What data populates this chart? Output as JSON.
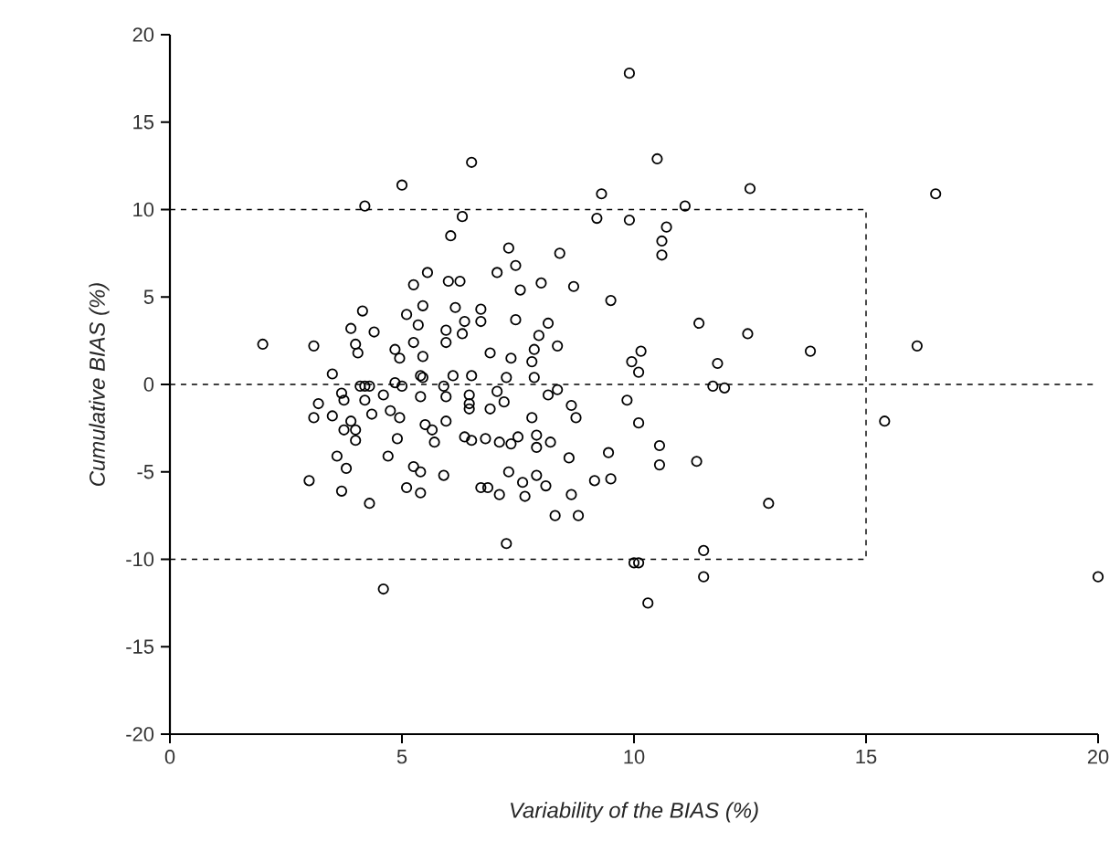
{
  "chart_data": {
    "type": "scatter",
    "xlabel": "Variability of the BIAS (%)",
    "ylabel": "Cumulative BIAS (%)",
    "xlim": [
      0,
      20
    ],
    "ylim": [
      -20,
      20
    ],
    "xticks": [
      0,
      5,
      10,
      15,
      20
    ],
    "yticks": [
      -20,
      -15,
      -10,
      -5,
      0,
      5,
      10,
      15,
      20
    ],
    "ref_lines": [
      {
        "axis": "y",
        "value": 0,
        "line_style": "dashed",
        "color": "#000000"
      }
    ],
    "series": [
      {
        "color": "#000000",
        "marker": "circle",
        "x": [
          2.0,
          3.1,
          4.2,
          5.0,
          6.5,
          6.3,
          6.05,
          5.55,
          5.25,
          6.0,
          6.25,
          4.15,
          5.1,
          5.45,
          6.15,
          6.7,
          6.7,
          5.35,
          6.35,
          3.9,
          4.4,
          5.95,
          5.95,
          6.3,
          5.25,
          4.0,
          4.05,
          4.85,
          4.95,
          5.45,
          3.5,
          5.4,
          5.45,
          6.1,
          6.5,
          3.7,
          3.75,
          4.1,
          4.2,
          4.3,
          4.6,
          4.2,
          4.85,
          5.0,
          5.9,
          5.95,
          6.45,
          6.45,
          6.45,
          3.2,
          3.1,
          3.5,
          3.9,
          3.75,
          4.0,
          4.0,
          4.35,
          4.75,
          4.95,
          5.4,
          5.5,
          5.65,
          5.7,
          5.95,
          6.35,
          6.5,
          4.9,
          3.6,
          3.8,
          4.7,
          5.25,
          5.4,
          5.9,
          3.0,
          3.7,
          5.1,
          5.4,
          4.3,
          6.7,
          4.6,
          9.9,
          10.5,
          12.5,
          9.3,
          11.1,
          9.2,
          9.9,
          10.7,
          10.6,
          10.6,
          7.3,
          7.45,
          7.05,
          8.4,
          7.55,
          8.0,
          8.7,
          9.5,
          7.45,
          8.15,
          7.95,
          8.35,
          7.85,
          6.9,
          7.35,
          7.8,
          11.4,
          12.45,
          10.15,
          9.95,
          10.1,
          11.8,
          7.25,
          7.85,
          11.7,
          11.95,
          7.05,
          6.9,
          7.2,
          8.15,
          8.35,
          7.8,
          8.65,
          8.75,
          9.85,
          10.1,
          6.8,
          7.1,
          7.35,
          7.5,
          7.9,
          7.9,
          8.2,
          8.6,
          9.45,
          10.55,
          10.55,
          11.35,
          7.3,
          7.6,
          7.9,
          8.1,
          6.85,
          7.1,
          7.65,
          8.65,
          9.15,
          9.5,
          8.3,
          8.8,
          12.9,
          7.25,
          10.0,
          10.1,
          11.5,
          11.5,
          10.3,
          16.5,
          13.8,
          16.1,
          15.4,
          20.0
        ],
        "values": [
          2.3,
          2.2,
          10.2,
          11.4,
          12.7,
          9.6,
          8.5,
          6.4,
          5.7,
          5.9,
          5.9,
          4.2,
          4.0,
          4.5,
          4.4,
          4.3,
          3.6,
          3.4,
          3.6,
          3.2,
          3.0,
          3.1,
          2.4,
          2.9,
          2.4,
          2.3,
          1.8,
          2.0,
          1.5,
          1.6,
          0.6,
          0.5,
          0.4,
          0.5,
          0.5,
          -0.5,
          -0.9,
          -0.1,
          -0.1,
          -0.1,
          -0.6,
          -0.9,
          0.1,
          -0.1,
          -0.1,
          -0.7,
          -0.6,
          -1.1,
          -1.4,
          -1.1,
          -1.9,
          -1.8,
          -2.1,
          -2.6,
          -2.6,
          -3.2,
          -1.7,
          -1.5,
          -1.9,
          -0.7,
          -2.3,
          -2.6,
          -3.3,
          -2.1,
          -3.0,
          -3.2,
          -3.1,
          -4.1,
          -4.8,
          -4.1,
          -4.7,
          -5.0,
          -5.2,
          -5.5,
          -6.1,
          -5.9,
          -6.2,
          -6.8,
          -5.9,
          -11.7,
          17.8,
          12.9,
          11.2,
          10.9,
          10.2,
          9.5,
          9.4,
          9.0,
          8.2,
          7.4,
          7.8,
          6.8,
          6.4,
          7.5,
          5.4,
          5.8,
          5.6,
          4.8,
          3.7,
          3.5,
          2.8,
          2.2,
          2.0,
          1.8,
          1.5,
          1.3,
          3.5,
          2.9,
          1.9,
          1.3,
          0.7,
          1.2,
          0.4,
          0.4,
          -0.1,
          -0.2,
          -0.4,
          -1.4,
          -1.0,
          -0.6,
          -0.3,
          -1.9,
          -1.2,
          -1.9,
          -0.9,
          -2.2,
          -3.1,
          -3.3,
          -3.4,
          -3.0,
          -2.9,
          -3.6,
          -3.3,
          -4.2,
          -3.9,
          -3.5,
          -4.6,
          -4.4,
          -5.0,
          -5.6,
          -5.2,
          -5.8,
          -5.9,
          -6.3,
          -6.4,
          -6.3,
          -5.5,
          -5.4,
          -7.5,
          -7.5,
          -6.8,
          -9.1,
          -10.2,
          -10.2,
          -9.5,
          -11.0,
          -12.5,
          10.9,
          1.9,
          2.2,
          -2.1,
          -11.0
        ]
      },
      {
        "type": "line",
        "color": "#000000",
        "marker": "none",
        "line_style": "dashed",
        "x": [
          0,
          15,
          15,
          0
        ],
        "values": [
          10,
          10,
          -10,
          -10
        ]
      }
    ]
  }
}
